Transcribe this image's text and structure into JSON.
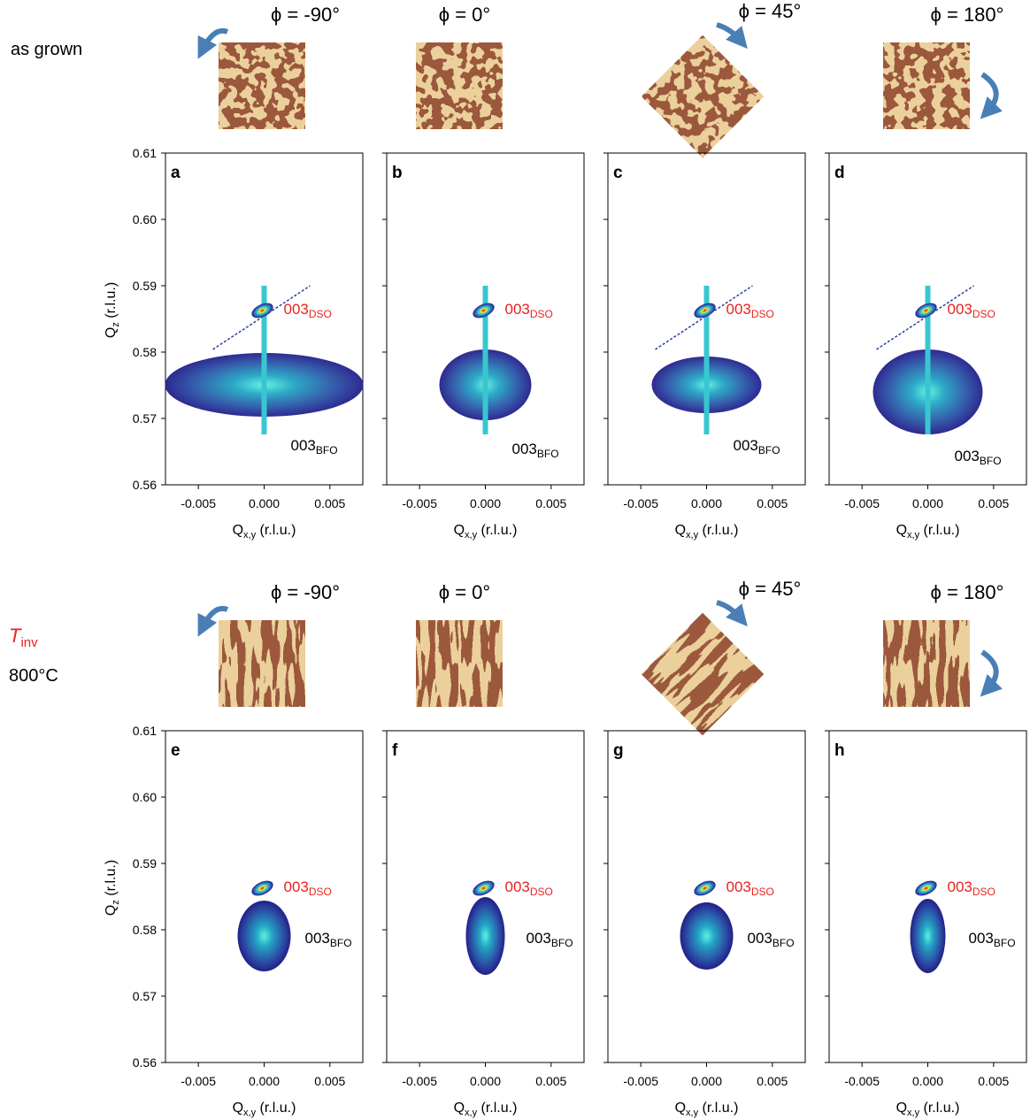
{
  "row_labels": [
    {
      "text": "as grown"
    },
    {
      "text": "T",
      "sub": "inv",
      "line2": "800°C"
    }
  ],
  "chart_data": [
    {
      "type": "heatmap",
      "panel": "a",
      "phi": "ϕ = -90°",
      "xlim": [
        -0.0075,
        0.0075
      ],
      "ylim": [
        0.56,
        0.61
      ],
      "xticks": [
        -0.005,
        {
          "value": 0,
          "label": "0.000"
        },
        0.005
      ],
      "yticks": [
        0.56,
        0.57,
        0.58,
        0.59,
        {
          "value": 0.6,
          "label": "0.60"
        },
        0.61
      ],
      "xlabel": {
        "text": "Q",
        "sub": "x,y",
        "suffix": " (r.l.u.)"
      },
      "ylabel": {
        "text": "Q",
        "sub": "z",
        "suffix": " (r.l.u.)"
      },
      "annotations": [
        {
          "text": "003",
          "sub": "DSO",
          "color": "#e8231f"
        },
        {
          "text": "003",
          "sub": "BFO",
          "color": "#000000"
        }
      ]
    },
    {
      "type": "heatmap",
      "panel": "b",
      "phi": "ϕ = 0°",
      "xlim": [
        -0.0075,
        0.0075
      ],
      "ylim": [
        0.56,
        0.61
      ],
      "xticks": [
        -0.005,
        {
          "value": 0,
          "label": "0.000"
        },
        0.005
      ],
      "yticks": [
        0.56,
        0.57,
        0.58,
        0.59,
        0.6,
        0.61
      ],
      "xlabel": {
        "text": "Q",
        "sub": "x,y",
        "suffix": " (r.l.u.)"
      },
      "annotations": [
        {
          "text": "003",
          "sub": "DSO",
          "color": "#e8231f"
        },
        {
          "text": "003",
          "sub": "BFO",
          "color": "#000000"
        }
      ]
    },
    {
      "type": "heatmap",
      "panel": "c",
      "phi": "ϕ = 45°",
      "xlim": [
        -0.0075,
        0.0075
      ],
      "ylim": [
        0.56,
        0.61
      ],
      "xticks": [
        -0.005,
        {
          "value": 0,
          "label": "0.000"
        },
        0.005
      ],
      "yticks": [
        0.56,
        0.57,
        0.58,
        0.59,
        0.6,
        0.61
      ],
      "xlabel": {
        "text": "Q",
        "sub": "x,y",
        "suffix": " (r.l.u.)"
      },
      "annotations": [
        {
          "text": "003",
          "sub": "DSO",
          "color": "#e8231f"
        },
        {
          "text": "003",
          "sub": "BFO",
          "color": "#000000"
        }
      ]
    },
    {
      "type": "heatmap",
      "panel": "d",
      "phi": "ϕ = 180°",
      "xlim": [
        -0.0075,
        0.0075
      ],
      "ylim": [
        0.56,
        0.61
      ],
      "xticks": [
        -0.005,
        {
          "value": 0,
          "label": "0.000"
        },
        0.005
      ],
      "yticks": [
        0.56,
        0.57,
        0.58,
        0.59,
        0.6,
        0.61
      ],
      "xlabel": {
        "text": "Q",
        "sub": "x,y",
        "suffix": " (r.l.u.)"
      },
      "annotations": [
        {
          "text": "003",
          "sub": "DSO",
          "color": "#e8231f"
        },
        {
          "text": "003",
          "sub": "BFO",
          "color": "#000000"
        }
      ]
    },
    {
      "type": "heatmap",
      "panel": "e",
      "phi": "ϕ = -90°",
      "xlim": [
        -0.0075,
        0.0075
      ],
      "ylim": [
        0.56,
        0.61
      ],
      "xticks": [
        -0.005,
        {
          "value": 0,
          "label": "0.000"
        },
        0.005
      ],
      "yticks": [
        0.56,
        0.57,
        0.58,
        0.59,
        {
          "value": 0.6,
          "label": "0.60"
        },
        0.61
      ],
      "xlabel": {
        "text": "Q",
        "sub": "x,y",
        "suffix": " (r.l.u.)"
      },
      "ylabel": {
        "text": "Q",
        "sub": "z",
        "suffix": " (r.l.u.)"
      },
      "annotations": [
        {
          "text": "003",
          "sub": "DSO",
          "color": "#e8231f"
        },
        {
          "text": "003",
          "sub": "BFO",
          "color": "#000000"
        }
      ]
    },
    {
      "type": "heatmap",
      "panel": "f",
      "phi": "ϕ = 0°",
      "xlim": [
        -0.0075,
        0.0075
      ],
      "ylim": [
        0.56,
        0.61
      ],
      "xticks": [
        -0.005,
        {
          "value": 0,
          "label": "0.000"
        },
        0.005
      ],
      "yticks": [
        0.56,
        0.57,
        0.58,
        0.59,
        0.6,
        0.61
      ],
      "xlabel": {
        "text": "Q",
        "sub": "x,y",
        "suffix": " (r.l.u.)"
      },
      "annotations": [
        {
          "text": "003",
          "sub": "DSO",
          "color": "#e8231f"
        },
        {
          "text": "003",
          "sub": "BFO",
          "color": "#000000"
        }
      ]
    },
    {
      "type": "heatmap",
      "panel": "g",
      "phi": "ϕ = 45°",
      "xlim": [
        -0.0075,
        0.0075
      ],
      "ylim": [
        0.56,
        0.61
      ],
      "xticks": [
        -0.005,
        {
          "value": 0,
          "label": "0.000"
        },
        0.005
      ],
      "yticks": [
        0.56,
        0.57,
        0.58,
        0.59,
        0.6,
        0.61
      ],
      "xlabel": {
        "text": "Q",
        "sub": "x,y",
        "suffix": " (r.l.u.)"
      },
      "annotations": [
        {
          "text": "003",
          "sub": "DSO",
          "color": "#e8231f"
        },
        {
          "text": "003",
          "sub": "BFO",
          "color": "#000000"
        }
      ]
    },
    {
      "type": "heatmap",
      "panel": "h",
      "phi": "ϕ = 180°",
      "xlim": [
        -0.0075,
        0.0075
      ],
      "ylim": [
        0.56,
        0.61
      ],
      "xticks": [
        -0.005,
        {
          "value": 0,
          "label": "0.000"
        },
        0.005
      ],
      "yticks": [
        0.56,
        0.57,
        0.58,
        0.59,
        0.6,
        0.61
      ],
      "xlabel": {
        "text": "Q",
        "sub": "x,y",
        "suffix": " (r.l.u.)"
      },
      "annotations": [
        {
          "text": "003",
          "sub": "DSO",
          "color": "#e8231f"
        },
        {
          "text": "003",
          "sub": "BFO",
          "color": "#000000"
        }
      ]
    }
  ]
}
